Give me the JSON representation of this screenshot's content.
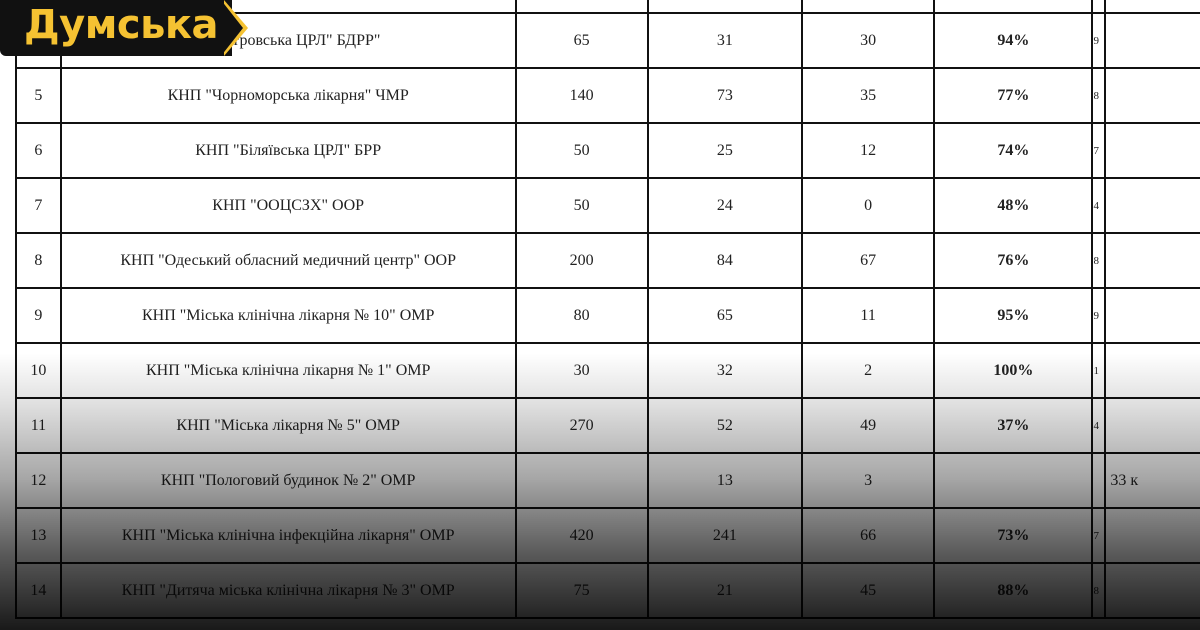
{
  "logo": {
    "text": "Думська",
    "color": "#f5c232",
    "background": "#111111"
  },
  "table": {
    "rows": [
      {
        "n": "",
        "name": "",
        "a": "",
        "b": "",
        "c": "",
        "pct": "",
        "tail": "",
        "extra": ""
      },
      {
        "n": "",
        "name": "-Дністровська ЦРЛ\" БДРР\"",
        "a": "65",
        "b": "31",
        "c": "30",
        "pct": "94%",
        "tail": "9",
        "extra": ""
      },
      {
        "n": "5",
        "name": "КНП \"Чорноморська лікарня\" ЧМР",
        "a": "140",
        "b": "73",
        "c": "35",
        "pct": "77%",
        "tail": "8",
        "extra": ""
      },
      {
        "n": "6",
        "name": "КНП \"Біляївська ЦРЛ\" БРР",
        "a": "50",
        "b": "25",
        "c": "12",
        "pct": "74%",
        "tail": "7",
        "extra": ""
      },
      {
        "n": "7",
        "name": "КНП \"ООЦСЗХ\" ООР",
        "a": "50",
        "b": "24",
        "c": "0",
        "pct": "48%",
        "tail": "4",
        "extra": ""
      },
      {
        "n": "8",
        "name": "КНП \"Одеський обласний медичний центр\" ООР",
        "a": "200",
        "b": "84",
        "c": "67",
        "pct": "76%",
        "tail": "8",
        "extra": ""
      },
      {
        "n": "9",
        "name": "КНП \"Міська клінічна лікарня № 10\" ОМР",
        "a": "80",
        "b": "65",
        "c": "11",
        "pct": "95%",
        "tail": "9",
        "extra": ""
      },
      {
        "n": "10",
        "name": "КНП \"Міська клінічна лікарня № 1\" ОМР",
        "a": "30",
        "b": "32",
        "c": "2",
        "pct": "100%",
        "tail": "1",
        "extra": ""
      },
      {
        "n": "11",
        "name": "КНП \"Міська лікарня № 5\" ОМР",
        "a": "270",
        "b": "52",
        "c": "49",
        "pct": "37%",
        "tail": "4",
        "extra": ""
      },
      {
        "n": "12",
        "name": "КНП \"Пологовий будинок № 2\" ОМР",
        "a": "",
        "b": "13",
        "c": "3",
        "pct": "",
        "tail": "",
        "extra": "33 к"
      },
      {
        "n": "13",
        "name": "КНП \"Міська клінічна інфекційна лікарня\" ОМР",
        "a": "420",
        "b": "241",
        "c": "66",
        "pct": "73%",
        "tail": "7",
        "extra": ""
      },
      {
        "n": "14",
        "name": "КНП \"Дитяча міська клінічна лікарня № 3\" ОМР",
        "a": "75",
        "b": "21",
        "c": "45",
        "pct": "88%",
        "tail": "8",
        "extra": ""
      }
    ]
  }
}
